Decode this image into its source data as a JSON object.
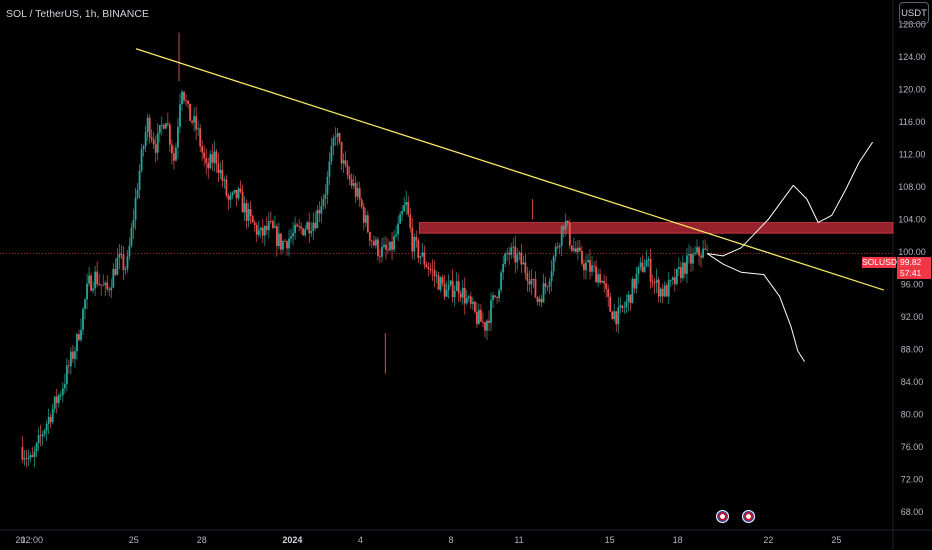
{
  "header": {
    "symbol_title": "SOL / TetherUS, 1h, BINANCE",
    "currency_button": "USDT"
  },
  "price_badges": {
    "symbol": "SOLUSDT",
    "last_price": "99.82",
    "countdown": "57:41"
  },
  "colors": {
    "background": "#000000",
    "candle_up": "#26a69a",
    "candle_down": "#ef5350",
    "trendline": "#f5e663",
    "resistance_zone": "#b22833",
    "price_line": "#f23645",
    "projection": "#ffffff",
    "axis_text": "#b2b5be"
  },
  "icons": [
    "us-flag-event-icon",
    "us-flag-event-icon"
  ],
  "chart_data": {
    "type": "candlestick",
    "title": "SOL / TetherUS, 1h, BINANCE",
    "y_ticks": [
      "128.00",
      "124.00",
      "120.00",
      "116.00",
      "112.00",
      "108.00",
      "104.00",
      "100.00",
      "96.00",
      "92.00",
      "88.00",
      "84.00",
      "80.00",
      "76.00",
      "72.00",
      "68.00"
    ],
    "y_tick_values": [
      128,
      124,
      120,
      116,
      112,
      108,
      104,
      100,
      96,
      92,
      88,
      84,
      80,
      76,
      72,
      68
    ],
    "ylim": [
      67,
      131
    ],
    "x_ticks": [
      "20",
      "12:00",
      "25",
      "28",
      "2024",
      "4",
      "8",
      "11",
      "15",
      "18",
      "22",
      "25"
    ],
    "x_tick_days": [
      0,
      0.5,
      5,
      8,
      12,
      15,
      19,
      22,
      26,
      29,
      33,
      36
    ],
    "xlim": [
      -0.9,
      38.5
    ],
    "price_path": [
      [
        0,
        76
      ],
      [
        0.5,
        74
      ],
      [
        1,
        78
      ],
      [
        1.8,
        83
      ],
      [
        2.5,
        89
      ],
      [
        3,
        96
      ],
      [
        3.3,
        97
      ],
      [
        3.8,
        95
      ],
      [
        4.3,
        99
      ],
      [
        4.7,
        98
      ],
      [
        5.2,
        109
      ],
      [
        5.6,
        116
      ],
      [
        6,
        113
      ],
      [
        6.4,
        117
      ],
      [
        6.8,
        111
      ],
      [
        7.1,
        121
      ],
      [
        7.4,
        117
      ],
      [
        7.8,
        115
      ],
      [
        8.2,
        110
      ],
      [
        8.6,
        112
      ],
      [
        9.2,
        106
      ],
      [
        9.6,
        107
      ],
      [
        10.1,
        104
      ],
      [
        10.6,
        102
      ],
      [
        11,
        103
      ],
      [
        11.5,
        101
      ],
      [
        12,
        102
      ],
      [
        12.5,
        103
      ],
      [
        13,
        104
      ],
      [
        13.5,
        108
      ],
      [
        13.9,
        115
      ],
      [
        14.3,
        110
      ],
      [
        14.7,
        108
      ],
      [
        15,
        106
      ],
      [
        15.3,
        103
      ],
      [
        15.6,
        101
      ],
      [
        15.9,
        100
      ],
      [
        16.3,
        100
      ],
      [
        16.7,
        103
      ],
      [
        17,
        106
      ],
      [
        17.3,
        101
      ],
      [
        17.8,
        99
      ],
      [
        18.3,
        97
      ],
      [
        18.8,
        95
      ],
      [
        19.3,
        96
      ],
      [
        19.7,
        94
      ],
      [
        20.1,
        92
      ],
      [
        20.5,
        91
      ],
      [
        21,
        95
      ],
      [
        21.5,
        100
      ],
      [
        22,
        99
      ],
      [
        22.5,
        97
      ],
      [
        22.8,
        94
      ],
      [
        23.2,
        96
      ],
      [
        23.6,
        100
      ],
      [
        24,
        104
      ],
      [
        24.3,
        101
      ],
      [
        24.7,
        99
      ],
      [
        25.1,
        98
      ],
      [
        25.6,
        97
      ],
      [
        26,
        93
      ],
      [
        26.4,
        92
      ],
      [
        26.8,
        94
      ],
      [
        27.2,
        97
      ],
      [
        27.6,
        99
      ],
      [
        28,
        96
      ],
      [
        28.4,
        95
      ],
      [
        28.8,
        96
      ],
      [
        29.2,
        98
      ],
      [
        29.6,
        99
      ],
      [
        30,
        100
      ],
      [
        30.3,
        99.8
      ]
    ],
    "annotations": {
      "trendline": {
        "from": [
          5.1,
          125
        ],
        "to": [
          38.1,
          95.3
        ]
      },
      "resistance_zone": {
        "x_from": 17.6,
        "x_to": 38.5,
        "y_from": 102.3,
        "y_to": 103.6
      },
      "current_price_line": 99.82,
      "projection_up": [
        [
          30.3,
          99.8
        ],
        [
          31,
          99.5
        ],
        [
          31.8,
          100.5
        ],
        [
          33,
          104
        ],
        [
          34.1,
          108.2
        ],
        [
          34.7,
          106.5
        ],
        [
          35.2,
          103.6
        ],
        [
          35.8,
          104.5
        ],
        [
          36.4,
          107.6
        ],
        [
          37,
          111
        ],
        [
          37.6,
          113.5
        ]
      ],
      "projection_down": [
        [
          30.3,
          99.8
        ],
        [
          31,
          98.5
        ],
        [
          31.8,
          97.5
        ],
        [
          32.8,
          97.2
        ],
        [
          33.5,
          94.5
        ],
        [
          34,
          90.8
        ],
        [
          34.3,
          87.8
        ],
        [
          34.6,
          86.5
        ]
      ]
    }
  }
}
